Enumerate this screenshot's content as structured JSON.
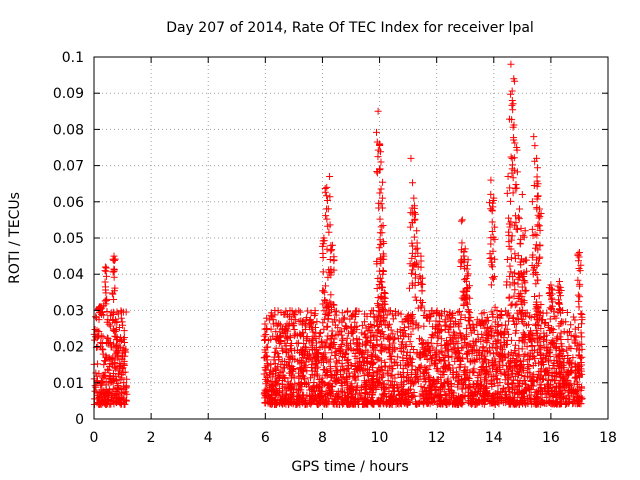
{
  "chart_data": {
    "type": "scatter",
    "title": "Day 207 of 2014, Rate Of TEC Index for receiver lpal",
    "xlabel": "GPS time / hours",
    "ylabel": "ROTI / TECUs",
    "xlim": [
      0,
      18
    ],
    "ylim": [
      0,
      0.1
    ],
    "xticks": [
      0,
      2,
      4,
      6,
      8,
      10,
      12,
      14,
      16,
      18
    ],
    "yticks": [
      0,
      0.01,
      0.02,
      0.03,
      0.04,
      0.05,
      0.06,
      0.07,
      0.08,
      0.09,
      0.1
    ],
    "xtick_labels": [
      "0",
      "2",
      "4",
      "6",
      "8",
      "10",
      "12",
      "14",
      "16",
      "18"
    ],
    "ytick_labels": [
      "0",
      "0.01",
      "0.02",
      "0.03",
      "0.04",
      "0.05",
      "0.06",
      "0.07",
      "0.08",
      "0.09",
      "0.1"
    ],
    "grid": true,
    "marker": "+",
    "series_color": "#ff0000",
    "segments": [
      {
        "x_start": 0.0,
        "x_end": 1.15,
        "typical_max": 0.03
      },
      {
        "x_start": 5.95,
        "x_end": 17.1,
        "typical_max": 0.03
      }
    ],
    "peaks": [
      {
        "x": 0.4,
        "y": 0.042
      },
      {
        "x": 0.7,
        "y": 0.045
      },
      {
        "x": 0.2,
        "y": 0.031
      },
      {
        "x": 8.05,
        "y": 0.05
      },
      {
        "x": 8.15,
        "y": 0.064
      },
      {
        "x": 8.25,
        "y": 0.067
      },
      {
        "x": 8.35,
        "y": 0.048
      },
      {
        "x": 9.95,
        "y": 0.085
      },
      {
        "x": 10.0,
        "y": 0.076
      },
      {
        "x": 10.05,
        "y": 0.071
      },
      {
        "x": 10.1,
        "y": 0.061
      },
      {
        "x": 10.15,
        "y": 0.045
      },
      {
        "x": 11.1,
        "y": 0.072
      },
      {
        "x": 11.2,
        "y": 0.061
      },
      {
        "x": 11.3,
        "y": 0.052
      },
      {
        "x": 11.45,
        "y": 0.045
      },
      {
        "x": 12.9,
        "y": 0.055
      },
      {
        "x": 13.0,
        "y": 0.047
      },
      {
        "x": 13.1,
        "y": 0.044
      },
      {
        "x": 13.9,
        "y": 0.066
      },
      {
        "x": 14.0,
        "y": 0.061
      },
      {
        "x": 14.5,
        "y": 0.067
      },
      {
        "x": 14.6,
        "y": 0.098
      },
      {
        "x": 14.7,
        "y": 0.094
      },
      {
        "x": 14.65,
        "y": 0.088
      },
      {
        "x": 14.8,
        "y": 0.075
      },
      {
        "x": 14.9,
        "y": 0.058
      },
      {
        "x": 15.0,
        "y": 0.062
      },
      {
        "x": 15.1,
        "y": 0.052
      },
      {
        "x": 15.4,
        "y": 0.078
      },
      {
        "x": 15.5,
        "y": 0.072
      },
      {
        "x": 15.55,
        "y": 0.065
      },
      {
        "x": 15.6,
        "y": 0.058
      },
      {
        "x": 16.0,
        "y": 0.037
      },
      {
        "x": 16.3,
        "y": 0.038
      },
      {
        "x": 17.0,
        "y": 0.046
      }
    ]
  }
}
